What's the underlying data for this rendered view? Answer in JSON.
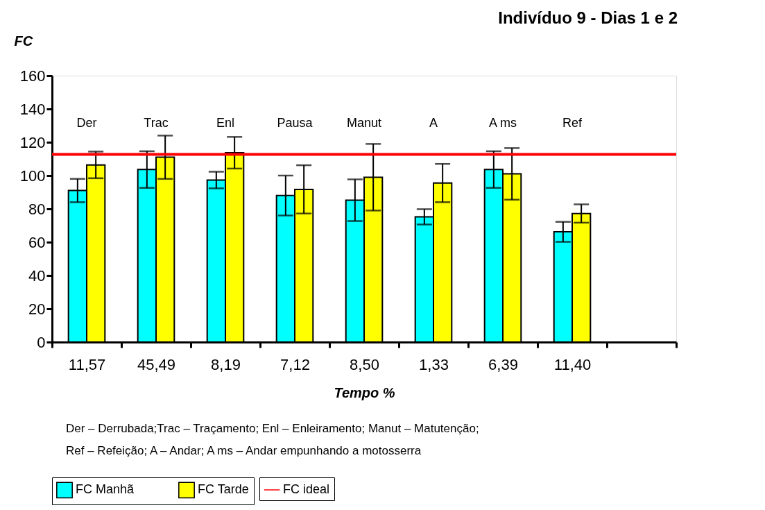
{
  "chart_data": {
    "type": "bar",
    "title": "Indivíduo 9 - Dias 1 e 2",
    "ylabel": "FC",
    "xlabel": "Tempo %",
    "categories": [
      "11,57",
      "45,49",
      "8,19",
      "7,12",
      "8,50",
      "1,33",
      "6,39",
      "11,40",
      null
    ],
    "series": [
      {
        "name": "FC Manhã",
        "color": "#00ffff",
        "values": [
          91,
          103.6,
          97.3,
          88,
          85.2,
          75.2,
          103.6,
          66.2,
          null
        ],
        "errors": [
          7,
          11,
          5,
          12,
          12.5,
          4.6,
          11,
          6,
          null
        ]
      },
      {
        "name": "FC Tarde",
        "color": "#ffff00",
        "values": [
          106.4,
          111,
          113.7,
          91.7,
          99,
          95.5,
          101,
          77.2,
          null
        ],
        "errors": [
          8,
          13,
          9.5,
          14.5,
          20,
          11.5,
          15.5,
          5.5,
          null
        ]
      }
    ],
    "ylim": [
      0,
      160
    ],
    "yticks": [
      0,
      20,
      40,
      60,
      80,
      100,
      120,
      140,
      160
    ],
    "ref_lines": [
      {
        "axis": "y",
        "value": 112.7,
        "label": "FC ideal",
        "color": "#ff0000"
      }
    ],
    "annotations": [
      "Der",
      "Trac",
      "Enl",
      "Pausa",
      "Manut",
      "A",
      "A ms",
      "Ref",
      "Der – Derrubada;Trac – Traçamento; Enl – Enleiramento; Manut – Matutenção;",
      "Ref – Refeição; A – Andar; A ms – Andar empunhando a motosserra"
    ],
    "grid": false,
    "legend": "bottom"
  }
}
